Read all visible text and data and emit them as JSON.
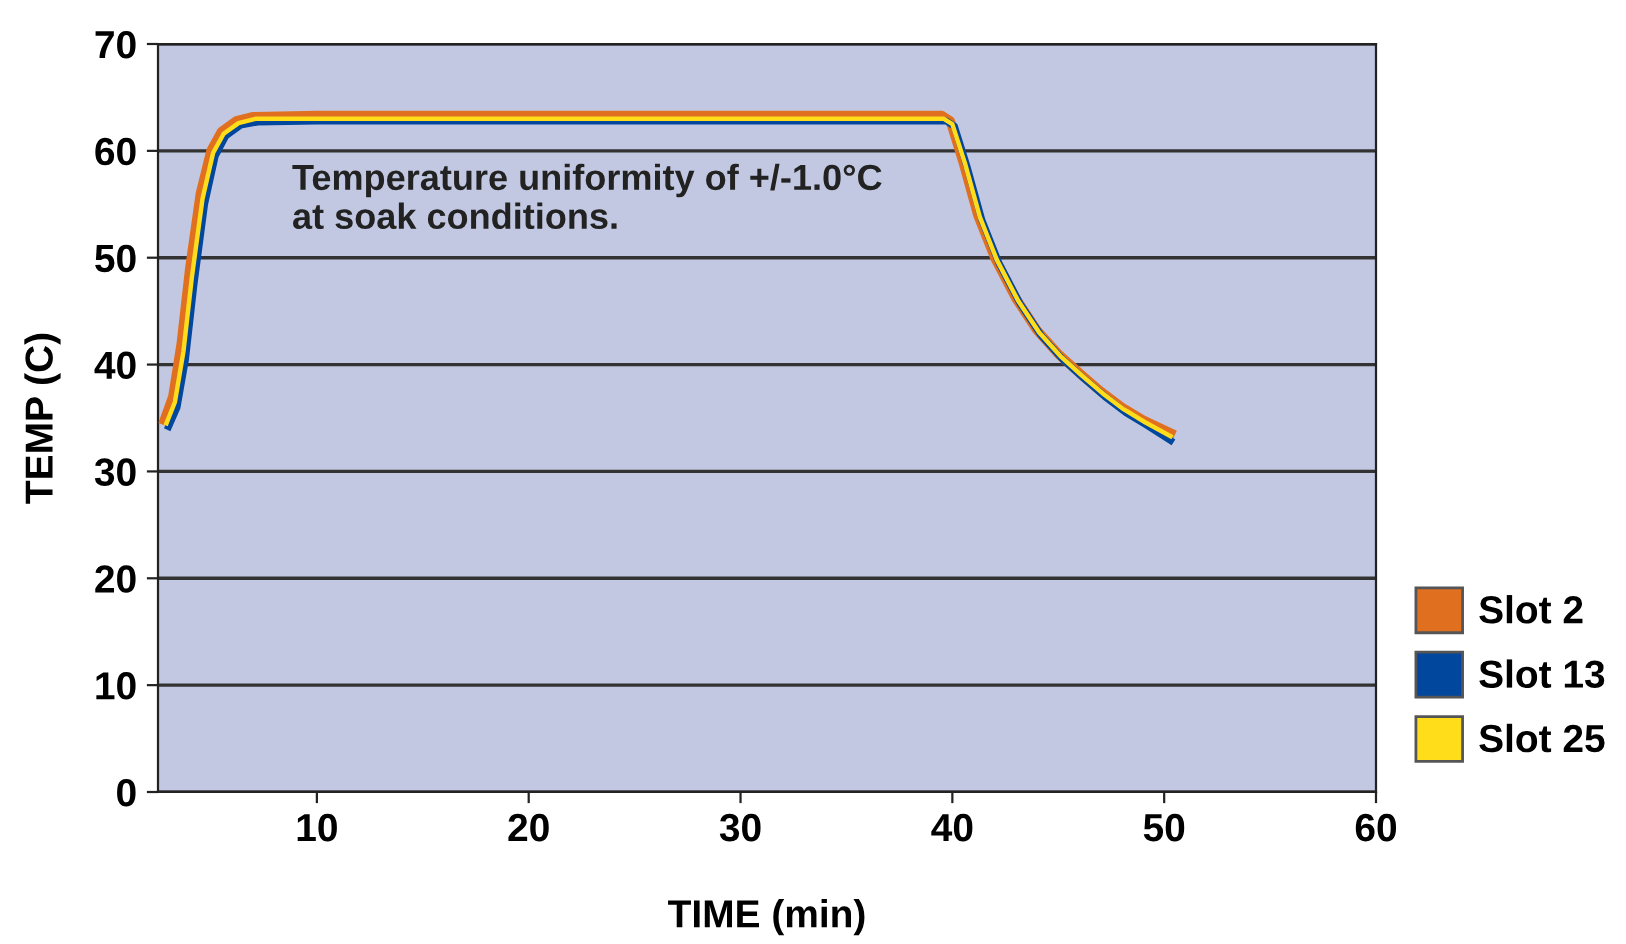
{
  "chart_data": {
    "type": "line",
    "xlabel": "TIME (min)",
    "ylabel": "TEMP (C)",
    "xlim": [
      2.5,
      60
    ],
    "ylim": [
      0,
      70
    ],
    "xticks": [
      10,
      20,
      30,
      40,
      50,
      60
    ],
    "yticks": [
      0,
      10,
      20,
      30,
      40,
      50,
      60,
      70
    ],
    "grid": "y",
    "legend": "right",
    "line_style": "solid",
    "marker": "none",
    "annotations": [
      "Temperature uniformity of +/-1.0°C\nat soak conditions."
    ],
    "x": [
      2.8,
      3.2,
      3.6,
      4.0,
      4.5,
      5.0,
      5.5,
      6.2,
      7.0,
      10,
      39.5,
      39.9,
      40.5,
      41.2,
      42,
      43,
      44,
      45,
      46,
      47,
      48,
      49,
      50.3
    ],
    "series": [
      {
        "name": "Slot 2",
        "color": "#e07020",
        "values": [
          34.8,
          37,
          42,
          49,
          56,
          60,
          61.8,
          62.8,
          63.2,
          63.3,
          63.3,
          62.8,
          59,
          54,
          50,
          46.2,
          43.2,
          41,
          39.2,
          37.5,
          36,
          34.8,
          33.6
        ]
      },
      {
        "name": "Slot 13",
        "color": "#00479d",
        "x": [
          3.0,
          3.4,
          3.8,
          4.2,
          4.7,
          5.2,
          5.7,
          6.4,
          7.2,
          10,
          39.7,
          40.1,
          40.7,
          41.4,
          42.2,
          43.2,
          44.2,
          45.2,
          46.2,
          47.2,
          48.2,
          49.2,
          50.3
        ],
        "values": [
          34.2,
          36,
          40.5,
          47.5,
          55,
          59.5,
          61.4,
          62.4,
          62.7,
          62.8,
          62.8,
          62.3,
          58.5,
          53.5,
          49.5,
          45.7,
          42.7,
          40.5,
          38.7,
          37,
          35.5,
          34.3,
          32.9
        ]
      },
      {
        "name": "Slot 25",
        "color": "#ffdd1a",
        "x": [
          2.9,
          3.3,
          3.7,
          4.1,
          4.6,
          5.1,
          5.6,
          6.3,
          7.1,
          10,
          39.6,
          40.0,
          40.6,
          41.3,
          42.1,
          43.1,
          44.1,
          45.1,
          46.1,
          47.1,
          48.1,
          49.1,
          50.3
        ],
        "values": [
          34.5,
          36.5,
          41.2,
          48.2,
          55.5,
          59.8,
          61.6,
          62.6,
          63.0,
          63.0,
          63.0,
          62.5,
          58.8,
          53.8,
          49.8,
          46,
          43,
          40.8,
          39,
          37.3,
          35.8,
          34.6,
          33.3
        ]
      }
    ]
  }
}
